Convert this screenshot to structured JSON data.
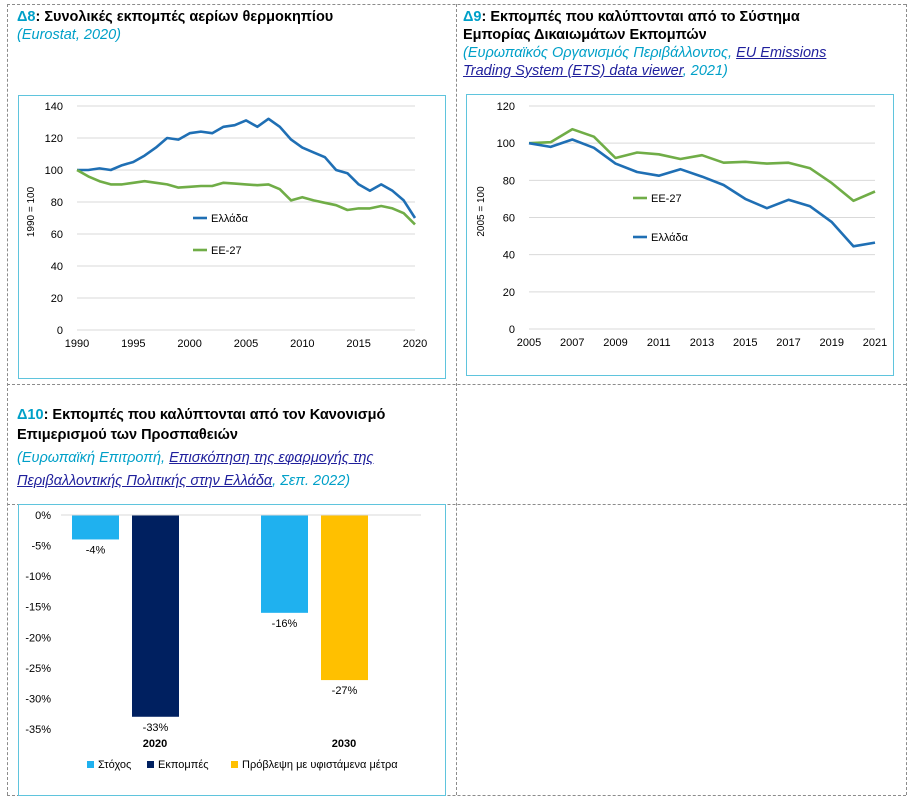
{
  "panels": {
    "d8": {
      "num": "Δ8",
      "title": ": Συνολικές εκπομπές αερίων θερμοκηπίου",
      "source": "(Eurostat, 2020)"
    },
    "d9": {
      "num": "Δ9",
      "title_l1": ": Εκπομπές που καλύπτονται από το Σύστημα",
      "title_l2": "Εμπορίας Δικαιωμάτων Εκπομπών",
      "src_pre": "(Ευρωπαϊκός Οργανισμός Περιβάλλοντος, ",
      "src_link1": "EU Emissions",
      "src_link2": "Trading System (ETS) data viewer",
      "src_post": ", 2021)"
    },
    "d10": {
      "num": "Δ10",
      "title_l1": ": Εκπομπές που καλύπτονται από τον Κανονισμό",
      "title_l2": "Επιμερισμού των Προσπαθειών",
      "src_pre": "(Ευρωπαϊκή Επιτροπή, ",
      "src_link1": "Επισκόπηση της εφαρμογής της",
      "src_link2": "Περιβαλλοντικής Πολιτικής στην Ελλάδα",
      "src_post": ", Σεπ. 2022)"
    }
  },
  "chart_data": [
    {
      "type": "line",
      "ylabel": "1990 = 100",
      "ylim": [
        0,
        140
      ],
      "yticks": [
        0,
        20,
        40,
        60,
        80,
        100,
        120,
        140
      ],
      "xlim": [
        1990,
        2020
      ],
      "xticks": [
        1990,
        1995,
        2000,
        2005,
        2010,
        2015,
        2020
      ],
      "grid": true,
      "x": [
        1990,
        1991,
        1992,
        1993,
        1994,
        1995,
        1996,
        1997,
        1998,
        1999,
        2000,
        2001,
        2002,
        2003,
        2004,
        2005,
        2006,
        2007,
        2008,
        2009,
        2010,
        2011,
        2012,
        2013,
        2014,
        2015,
        2016,
        2017,
        2018,
        2019,
        2020
      ],
      "series": [
        {
          "name": "Ελλάδα",
          "color": "#1f6fb4",
          "values": [
            100,
            100,
            101,
            100,
            103,
            105,
            109,
            114,
            120,
            119,
            123,
            124,
            123,
            127,
            128,
            131,
            127,
            132,
            127,
            119,
            114,
            111,
            108,
            100,
            98,
            91,
            87,
            91,
            87,
            81,
            70
          ]
        },
        {
          "name": "ΕΕ-27",
          "color": "#70ad47",
          "values": [
            100,
            96,
            93,
            91,
            91,
            92,
            93,
            92,
            91,
            89,
            89.5,
            90,
            90,
            92,
            91.5,
            91,
            90.5,
            91,
            88,
            81,
            83,
            81,
            79.5,
            78,
            75,
            76,
            76,
            77.5,
            76,
            73,
            66
          ]
        }
      ]
    },
    {
      "type": "line",
      "ylabel": "2005 = 100",
      "ylim": [
        0,
        120
      ],
      "yticks": [
        0,
        20,
        40,
        60,
        80,
        100,
        120
      ],
      "xlim": [
        2005,
        2021
      ],
      "xticks": [
        2005,
        2007,
        2009,
        2011,
        2013,
        2015,
        2017,
        2019,
        2021
      ],
      "grid": true,
      "x": [
        2005,
        2006,
        2007,
        2008,
        2009,
        2010,
        2011,
        2012,
        2013,
        2014,
        2015,
        2016,
        2017,
        2018,
        2019,
        2020,
        2021
      ],
      "series": [
        {
          "name": "ΕΕ-27",
          "color": "#70ad47",
          "values": [
            100,
            100.5,
            107.5,
            103.5,
            92,
            95,
            94,
            91.5,
            93.5,
            89.5,
            90,
            89,
            89.5,
            86.5,
            78.5,
            69,
            74
          ]
        },
        {
          "name": "Ελλάδα",
          "color": "#1f6fb4",
          "values": [
            100,
            98,
            102,
            97.5,
            89,
            84.5,
            82.5,
            86,
            82,
            77.5,
            70,
            65,
            69.5,
            66,
            57.5,
            44.5,
            46.5
          ]
        }
      ]
    },
    {
      "type": "bar",
      "ylim": [
        -35,
        0
      ],
      "yticks": [
        0,
        -5,
        -10,
        -15,
        -20,
        -25,
        -30,
        -35
      ],
      "ytick_labels": [
        "0%",
        "-5%",
        "-10%",
        "-15%",
        "-20%",
        "-25%",
        "-30%",
        "-35%"
      ],
      "categories": [
        "2020",
        "2030"
      ],
      "grid": false,
      "legend": "bottom",
      "bars": [
        {
          "category": "2020",
          "series": "Στόχος",
          "color": "#1fb1ef",
          "value": -4,
          "label": "-4%"
        },
        {
          "category": "2020",
          "series": "Εκπομπές",
          "color": "#002060",
          "value": -33,
          "label": "-33%"
        },
        {
          "category": "2030",
          "series": "Στόχος",
          "color": "#1fb1ef",
          "value": -16,
          "label": "-16%"
        },
        {
          "category": "2030",
          "series": "Πρόβλεψη με υφιστάμενα μέτρα",
          "color": "#ffc000",
          "value": -27,
          "label": "-27%"
        }
      ],
      "legend_items": [
        {
          "name": "Στόχος",
          "color": "#1fb1ef"
        },
        {
          "name": "Εκπομπές",
          "color": "#002060"
        },
        {
          "name": "Πρόβλεψη με υφιστάμενα μέτρα",
          "color": "#ffc000"
        }
      ]
    }
  ]
}
